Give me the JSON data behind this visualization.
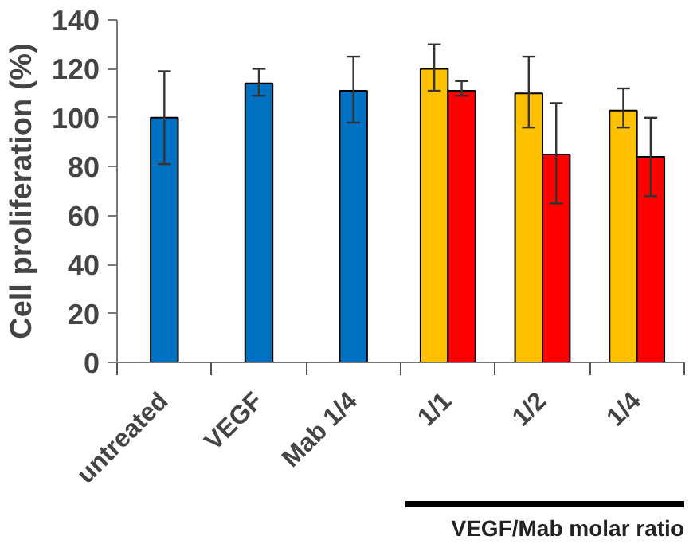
{
  "chart_data": {
    "type": "bar",
    "ylabel": "Cell proliferation (%)",
    "categories": [
      "untreated",
      "VEGF",
      "Mab 1/4",
      "1/1",
      "1/2",
      "1/4"
    ],
    "series": [
      {
        "color": "#0070c0",
        "values": [
          100,
          114,
          111,
          null,
          null,
          null
        ],
        "errors": [
          [
            81,
            119
          ],
          [
            109,
            120
          ],
          [
            98,
            125
          ],
          null,
          null,
          null
        ]
      },
      {
        "color": "#ffc000",
        "values": [
          null,
          null,
          null,
          120,
          110,
          103
        ],
        "errors": [
          null,
          null,
          null,
          [
            111,
            130
          ],
          [
            96,
            125
          ],
          [
            96,
            112
          ]
        ]
      },
      {
        "color": "#ff0000",
        "values": [
          null,
          null,
          null,
          111,
          85,
          84
        ],
        "errors": [
          null,
          null,
          null,
          [
            109,
            115
          ],
          [
            65,
            106
          ],
          [
            68,
            100
          ]
        ]
      }
    ],
    "ylim": [
      0,
      140
    ],
    "yticks": [
      0,
      20,
      40,
      60,
      80,
      100,
      120,
      140
    ],
    "annotations": [
      "VEGF/Mab molar ratio"
    ]
  }
}
